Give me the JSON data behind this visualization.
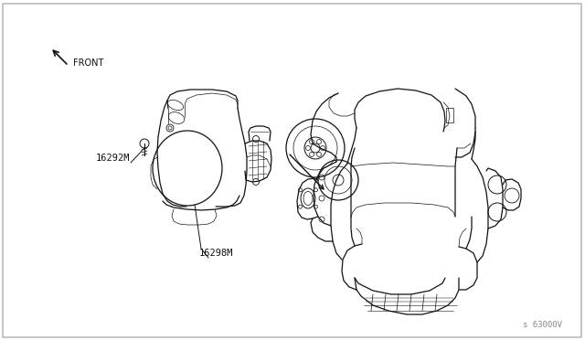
{
  "background_color": "#ffffff",
  "border_color": "#bbbbbb",
  "line_color": "#111111",
  "label_16298M": "16298M",
  "label_16292M": "16292M",
  "label_front": "FRONT",
  "label_part_no": "s 63000V",
  "text_color": "#111111",
  "figsize": [
    6.4,
    3.72
  ],
  "dpi": 100
}
